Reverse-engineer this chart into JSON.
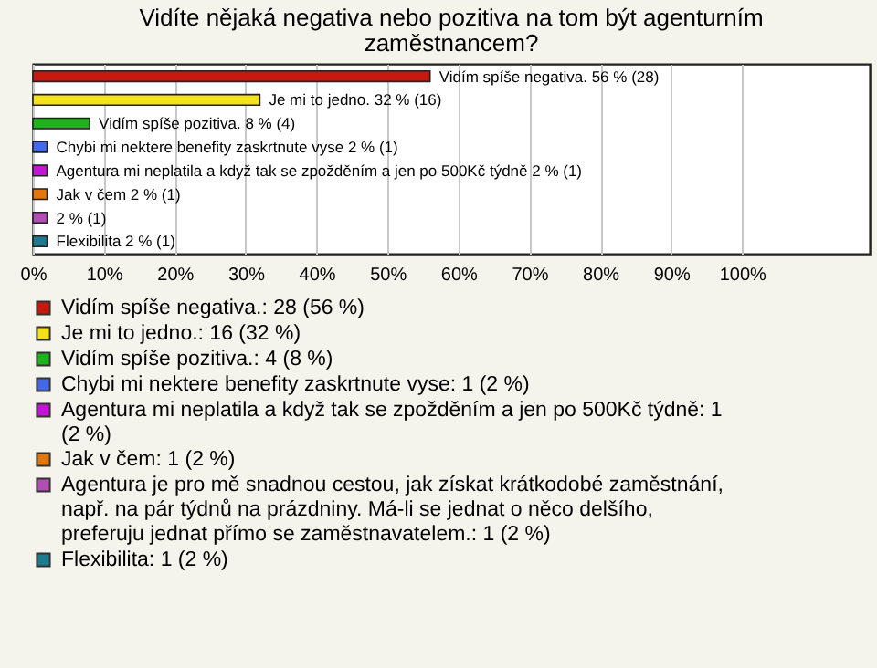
{
  "chart_data": {
    "type": "bar",
    "orientation": "horizontal",
    "title": "Vidíte nějaká negativa nebo pozitiva na tom být agenturním zaměstnancem?",
    "categories": [
      null,
      null,
      null,
      null,
      null,
      null,
      null,
      null
    ],
    "series": [
      {
        "name": "Vidím spíše negativa.: 28 (56 %)",
        "color": "#c8190e",
        "values": [
          56,
          null,
          null,
          null,
          null,
          null,
          null,
          null
        ],
        "value_labels": [
          "Vidím spíše negativa. 56 % (28)",
          null,
          null,
          null,
          null,
          null,
          null,
          null
        ]
      },
      {
        "name": "Je mi to jedno.: 16 (32 %)",
        "color": "#f2e21c",
        "values": [
          null,
          32,
          null,
          null,
          null,
          null,
          null,
          null
        ],
        "value_labels": [
          null,
          "Je mi to jedno. 32 % (16)",
          null,
          null,
          null,
          null,
          null,
          null
        ]
      },
      {
        "name": "Vidím spíše pozitiva.: 4 (8 %)",
        "color": "#1fb21c",
        "values": [
          null,
          null,
          8,
          null,
          null,
          null,
          null,
          null
        ],
        "value_labels": [
          null,
          null,
          "Vidím spíše pozitiva. 8 % (4)",
          null,
          null,
          null,
          null,
          null
        ]
      },
      {
        "name": "Chybi mi nektere benefity zaskrtnute vyse: 1 (2 %)",
        "color": "#4468e6",
        "values": [
          null,
          null,
          null,
          2,
          null,
          null,
          null,
          null
        ],
        "value_labels": [
          null,
          null,
          null,
          "Chybi mi nektere benefity zaskrtnute vyse 2 % (1)",
          null,
          null,
          null,
          null
        ]
      },
      {
        "name": "Agentura mi neplatila a když tak se zpožděním a jen po 500Kč týdně: 1 (2 %)",
        "color": "#c414d6",
        "values": [
          null,
          null,
          null,
          null,
          2,
          null,
          null,
          null
        ],
        "value_labels": [
          null,
          null,
          null,
          null,
          "Agentura mi neplatila a když tak se zpožděním a jen po 500Kč týdně 2 % (1)",
          null,
          null,
          null
        ]
      },
      {
        "name": "Jak v čem: 1 (2 %)",
        "color": "#e2770e",
        "values": [
          null,
          null,
          null,
          null,
          null,
          2,
          null,
          null
        ],
        "value_labels": [
          null,
          null,
          null,
          null,
          null,
          "Jak v čem 2 % (1)",
          null,
          null
        ]
      },
      {
        "name": "Agentura je pro mě snadnou cestou, jak získat krátkodobé zaměstnání, např. na pár týdnů na prázdniny. Má-li se jednat o něco delšího, preferuju jednat přímo se zaměstnavatelem.: 1 (2 %)",
        "color": "#b24fb4",
        "values": [
          null,
          null,
          null,
          null,
          null,
          null,
          2,
          null
        ],
        "value_labels": [
          null,
          null,
          null,
          null,
          null,
          null,
          "2 % (1)",
          null
        ]
      },
      {
        "name": "Flexibilita: 1 (2 %)",
        "color": "#1e7a8c",
        "values": [
          null,
          null,
          null,
          null,
          null,
          null,
          null,
          2
        ],
        "value_labels": [
          null,
          null,
          null,
          null,
          null,
          null,
          null,
          "Flexibilita 2 % (1)"
        ]
      }
    ],
    "xlim": [
      0,
      118
    ],
    "xticks": [
      {
        "value": 0,
        "label": "0%"
      },
      {
        "value": 10,
        "label": "10%"
      },
      {
        "value": 20,
        "label": "20%"
      },
      {
        "value": 30,
        "label": "30%"
      },
      {
        "value": 40,
        "label": "40%"
      },
      {
        "value": 50,
        "label": "50%"
      },
      {
        "value": 60,
        "label": "60%"
      },
      {
        "value": 70,
        "label": "70%"
      },
      {
        "value": 80,
        "label": "80%"
      },
      {
        "value": 90,
        "label": "90%"
      },
      {
        "value": 100,
        "label": "100%"
      }
    ],
    "grid": "x",
    "legend": "bottom",
    "tick_labels": "x"
  }
}
